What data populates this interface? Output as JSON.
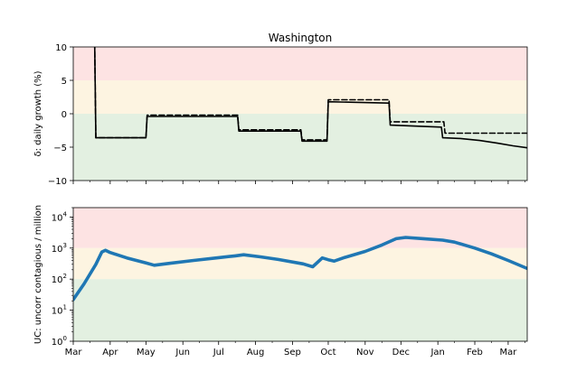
{
  "chart_data": [
    {
      "type": "line",
      "title": "Washington",
      "xlabel": "",
      "ylabel": "δ: daily growth (%)",
      "ylim": [
        -10,
        10
      ],
      "yticks": [
        "10",
        "5",
        "0",
        "−5",
        "−10"
      ],
      "x_range": [
        "2020-03-01",
        "2021-03-17"
      ],
      "bands": [
        {
          "from": 5,
          "to": 10,
          "color": "#fde3e3"
        },
        {
          "from": 0,
          "to": 5,
          "color": "#fdf4e1"
        },
        {
          "from": -10,
          "to": 0,
          "color": "#e3f0e1"
        }
      ],
      "series": [
        {
          "style": "solid",
          "color": "#000000",
          "points": [
            [
              "2020-03-19",
              10.5
            ],
            [
              "2020-03-20",
              -3.6
            ],
            [
              "2020-05-01",
              -3.6
            ],
            [
              "2020-05-02",
              -0.4
            ],
            [
              "2020-07-17",
              -0.4
            ],
            [
              "2020-07-18",
              -2.6
            ],
            [
              "2020-09-08",
              -2.6
            ],
            [
              "2020-09-09",
              -4.1
            ],
            [
              "2020-09-30",
              -4.1
            ],
            [
              "2020-10-01",
              1.8
            ],
            [
              "2020-11-21",
              1.6
            ],
            [
              "2020-11-22",
              -1.7
            ],
            [
              "2021-01-04",
              -2.0
            ],
            [
              "2021-01-05",
              -3.6
            ],
            [
              "2021-01-20",
              -3.7
            ],
            [
              "2021-02-05",
              -4.0
            ],
            [
              "2021-02-20",
              -4.4
            ],
            [
              "2021-03-05",
              -4.8
            ],
            [
              "2021-03-17",
              -5.1
            ]
          ]
        },
        {
          "style": "dashed",
          "color": "#000000",
          "points": [
            [
              "2020-03-19",
              10.5
            ],
            [
              "2020-03-20",
              -3.6
            ],
            [
              "2020-05-01",
              -3.6
            ],
            [
              "2020-05-02",
              -0.2
            ],
            [
              "2020-07-17",
              -0.2
            ],
            [
              "2020-07-18",
              -2.4
            ],
            [
              "2020-09-08",
              -2.4
            ],
            [
              "2020-09-09",
              -3.9
            ],
            [
              "2020-09-30",
              -3.9
            ],
            [
              "2020-10-01",
              2.1
            ],
            [
              "2020-11-21",
              2.1
            ],
            [
              "2020-11-22",
              -1.2
            ],
            [
              "2021-01-06",
              -1.2
            ],
            [
              "2021-01-07",
              -2.9
            ],
            [
              "2021-03-17",
              -2.9
            ]
          ]
        }
      ]
    },
    {
      "type": "line",
      "xlabel": "",
      "ylabel": "UC: uncorr contagious / million",
      "yscale": "log",
      "ylim": [
        1,
        20000
      ],
      "yticks": [
        {
          "value": 1,
          "base": "10",
          "exp": "0"
        },
        {
          "value": 10,
          "base": "10",
          "exp": "1"
        },
        {
          "value": 100,
          "base": "10",
          "exp": "2"
        },
        {
          "value": 1000,
          "base": "10",
          "exp": "3"
        },
        {
          "value": 10000,
          "base": "10",
          "exp": "4"
        }
      ],
      "x_range": [
        "2020-03-01",
        "2021-03-17"
      ],
      "bands": [
        {
          "from": 1000,
          "to": 20000,
          "color": "#fde3e3"
        },
        {
          "from": 100,
          "to": 1000,
          "color": "#fdf4e1"
        },
        {
          "from": 1,
          "to": 100,
          "color": "#e3f0e1"
        }
      ],
      "series": [
        {
          "style": "solid",
          "color": "#1f77b4",
          "points": [
            [
              "2020-03-01",
              22
            ],
            [
              "2020-03-10",
              70
            ],
            [
              "2020-03-20",
              300
            ],
            [
              "2020-03-25",
              750
            ],
            [
              "2020-03-28",
              850
            ],
            [
              "2020-04-01",
              720
            ],
            [
              "2020-04-15",
              480
            ],
            [
              "2020-05-01",
              330
            ],
            [
              "2020-05-08",
              280
            ],
            [
              "2020-05-20",
              320
            ],
            [
              "2020-06-10",
              400
            ],
            [
              "2020-07-01",
              490
            ],
            [
              "2020-07-15",
              560
            ],
            [
              "2020-07-22",
              610
            ],
            [
              "2020-08-05",
              520
            ],
            [
              "2020-08-20",
              430
            ],
            [
              "2020-09-10",
              310
            ],
            [
              "2020-09-18",
              250
            ],
            [
              "2020-09-26",
              480
            ],
            [
              "2020-10-01",
              420
            ],
            [
              "2020-10-06",
              380
            ],
            [
              "2020-10-15",
              500
            ],
            [
              "2020-11-01",
              780
            ],
            [
              "2020-11-15",
              1250
            ],
            [
              "2020-11-27",
              2000
            ],
            [
              "2020-12-05",
              2200
            ],
            [
              "2020-12-20",
              2000
            ],
            [
              "2021-01-05",
              1800
            ],
            [
              "2021-01-15",
              1550
            ],
            [
              "2021-02-01",
              1000
            ],
            [
              "2021-02-15",
              650
            ],
            [
              "2021-03-01",
              400
            ],
            [
              "2021-03-17",
              220
            ]
          ]
        }
      ]
    }
  ],
  "xticks": [
    "Mar",
    "Apr",
    "May",
    "Jun",
    "Jul",
    "Aug",
    "Sep",
    "Oct",
    "Nov",
    "Dec",
    "Jan",
    "Feb",
    "Mar"
  ]
}
